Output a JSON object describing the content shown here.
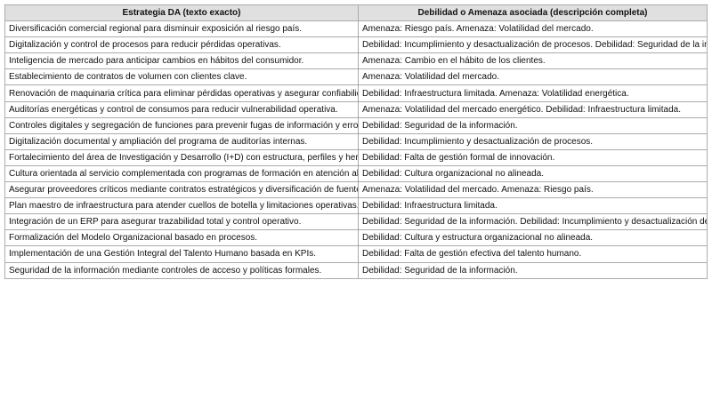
{
  "table": {
    "headers": [
      "Estrategia DA (texto exacto)",
      "Debilidad o Amenaza asociada (descripción completa)"
    ],
    "rows": [
      [
        "Diversificación comercial regional para disminuir exposición al riesgo país.",
        "Amenaza: Riesgo país. Amenaza: Volatilidad del mercado."
      ],
      [
        "Digitalización y control de procesos para reducir pérdidas operativas.",
        "Debilidad: Incumplimiento y desactualización de procesos. Debilidad: Seguridad de la información."
      ],
      [
        "Inteligencia de mercado para anticipar cambios en hábitos del consumidor.",
        "Amenaza: Cambio en el hábito de los clientes."
      ],
      [
        "Establecimiento de contratos de volumen con clientes clave.",
        "Amenaza: Volatilidad del mercado."
      ],
      [
        "Renovación de maquinaria crítica para eliminar pérdidas operativas y asegurar confiabilidad.",
        "Debilidad: Infraestructura limitada. Amenaza: Volatilidad energética."
      ],
      [
        "Auditorías energéticas y control de consumos para reducir vulnerabilidad operativa.",
        "Amenaza: Volatilidad del mercado energético. Debilidad: Infraestructura limitada."
      ],
      [
        "Controles digitales y segregación de funciones para prevenir fugas de información y errores.",
        "Debilidad: Seguridad de la información."
      ],
      [
        "Digitalización documental y ampliación del programa de auditorías internas.",
        "Debilidad: Incumplimiento y desactualización de procesos."
      ],
      [
        "Fortalecimiento del área de Investigación y Desarrollo (I+D) con estructura, perfiles y herramientas.",
        "Debilidad: Falta de gestión formal de innovación."
      ],
      [
        "Cultura orientada al servicio complementada con programas de formación en atención al cliente.",
        "Debilidad: Cultura organizacional no alineada."
      ],
      [
        "Asegurar proveedores críticos mediante contratos estratégicos y diversificación de fuentes.",
        "Amenaza: Volatilidad del mercado. Amenaza: Riesgo país."
      ],
      [
        "Plan maestro de infraestructura para atender cuellos de botella y limitaciones operativas.",
        "Debilidad: Infraestructura limitada."
      ],
      [
        "Integración de un ERP para asegurar trazabilidad total y control operativo.",
        "Debilidad: Seguridad de la información. Debilidad: Incumplimiento y desactualización de procesos."
      ],
      [
        "Formalización del Modelo Organizacional basado en procesos.",
        "Debilidad: Cultura y estructura organizacional no alineada."
      ],
      [
        "Implementación de una Gestión Integral del Talento Humano basada en KPIs.",
        "Debilidad: Falta de gestión efectiva del talento humano."
      ],
      [
        "Seguridad de la información mediante controles de acceso y políticas formales.",
        "Debilidad: Seguridad de la información."
      ]
    ]
  }
}
